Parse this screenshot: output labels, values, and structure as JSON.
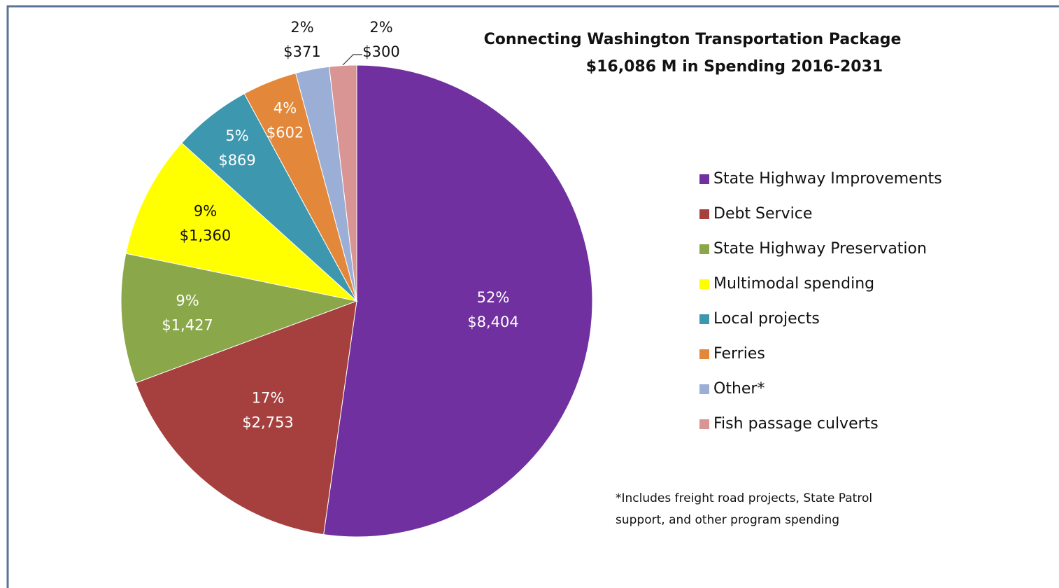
{
  "chart_data": {
    "type": "pie",
    "title": "Connecting Washington Transportation Package",
    "subtitle": "$16,086 M in Spending 2016-2031",
    "categories": [
      "State Highway Improvements",
      "Debt Service",
      "State Highway Preservation",
      "Multimodal spending",
      "Local projects",
      "Ferries",
      "Other*",
      "Fish passage culverts"
    ],
    "values": [
      8404,
      2753,
      1427,
      1360,
      869,
      602,
      371,
      300
    ],
    "value_labels": [
      "$8,404",
      "$2,753",
      "$1,427",
      "$1,360",
      "$869",
      "$602",
      "$371",
      "$300"
    ],
    "percents": [
      52,
      17,
      9,
      9,
      5,
      4,
      2,
      2
    ],
    "percent_labels": [
      "52%",
      "17%",
      "9%",
      "9%",
      "5%",
      "4%",
      "2%",
      "2%"
    ],
    "colors": [
      "#7030a0",
      "#a5403f",
      "#8aa84a",
      "#ffff00",
      "#3d97ae",
      "#e3883a",
      "#9aaed6",
      "#d99594"
    ],
    "legend": "right",
    "footnote": [
      "*Includes freight road projects, State Patrol",
      "support, and other program spending"
    ]
  }
}
